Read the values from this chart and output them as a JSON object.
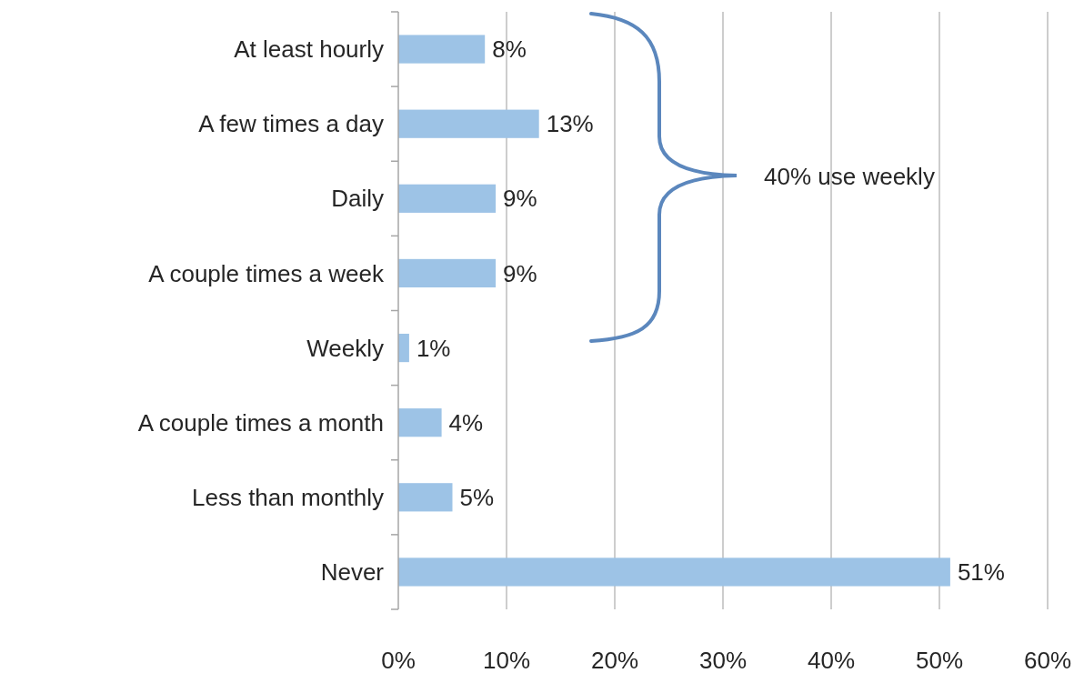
{
  "chart_data": {
    "type": "bar",
    "orientation": "horizontal",
    "categories": [
      "At least hourly",
      "A few times a day",
      "Daily",
      "A couple times a week",
      "Weekly",
      "A couple times a month",
      "Less than monthly",
      "Never"
    ],
    "values": [
      8,
      13,
      9,
      9,
      1,
      4,
      5,
      51
    ],
    "value_labels": [
      "8%",
      "13%",
      "9%",
      "9%",
      "1%",
      "4%",
      "5%",
      "51%"
    ],
    "color": "#9dc3e6",
    "xlim": [
      0,
      60
    ],
    "xticks": [
      {
        "value": 0,
        "label": "0%"
      },
      {
        "value": 10,
        "label": "10%"
      },
      {
        "value": 20,
        "label": "20%"
      },
      {
        "value": 30,
        "label": "30%"
      },
      {
        "value": 40,
        "label": "40%"
      },
      {
        "value": 50,
        "label": "50%"
      },
      {
        "value": 60,
        "label": "60%"
      }
    ],
    "grid": "x",
    "annotations": [
      "40% use weekly"
    ]
  }
}
